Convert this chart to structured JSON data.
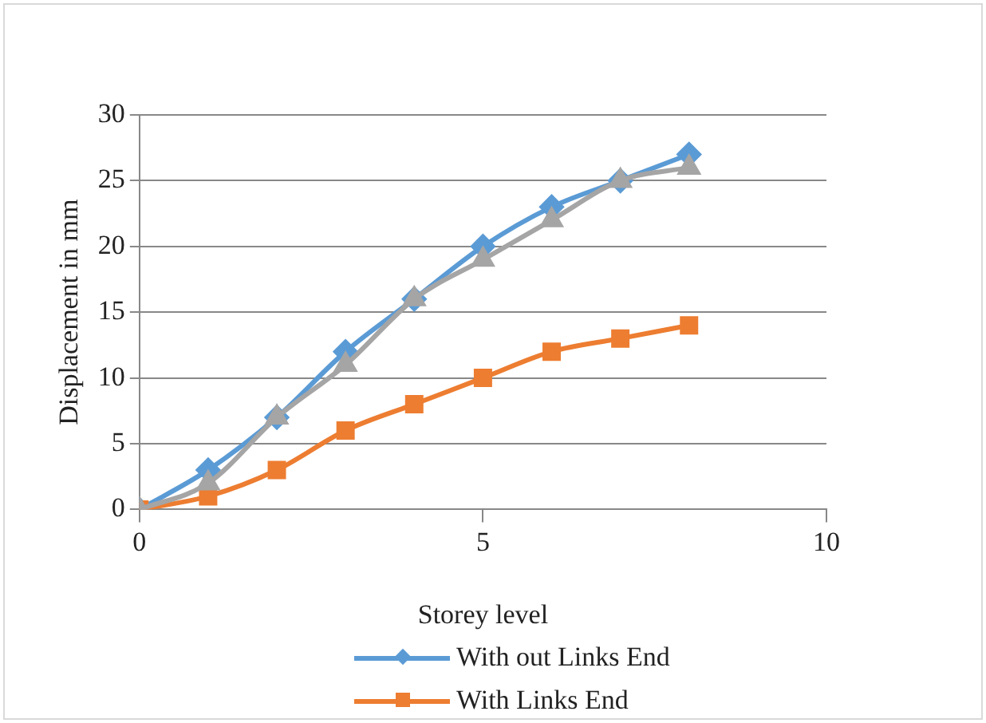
{
  "chart_data": {
    "type": "line",
    "xlabel": "Storey level",
    "ylabel": "Displacement in mm",
    "xlim": [
      0,
      10
    ],
    "xticks": [
      0,
      5,
      10
    ],
    "ylim": [
      0,
      30
    ],
    "yticks": [
      0,
      5,
      10,
      15,
      20,
      25,
      30
    ],
    "grid": "y",
    "legend": "bottom",
    "x": [
      0,
      1,
      2,
      3,
      4,
      5,
      6,
      7,
      8
    ],
    "series": [
      {
        "name": "With out Links End",
        "color": "#5b9bd5",
        "marker": "diamond",
        "values": [
          0,
          3,
          7,
          12,
          16,
          20,
          23,
          25,
          27
        ]
      },
      {
        "name": "With Links End",
        "color": "#ed7d31",
        "marker": "square",
        "values": [
          0,
          1,
          3,
          6,
          8,
          10,
          12,
          13,
          14
        ]
      },
      {
        "color": "#a5a5a5",
        "marker": "triangle",
        "values": [
          0,
          2,
          7,
          11,
          16,
          19,
          22,
          25,
          26
        ]
      }
    ]
  }
}
